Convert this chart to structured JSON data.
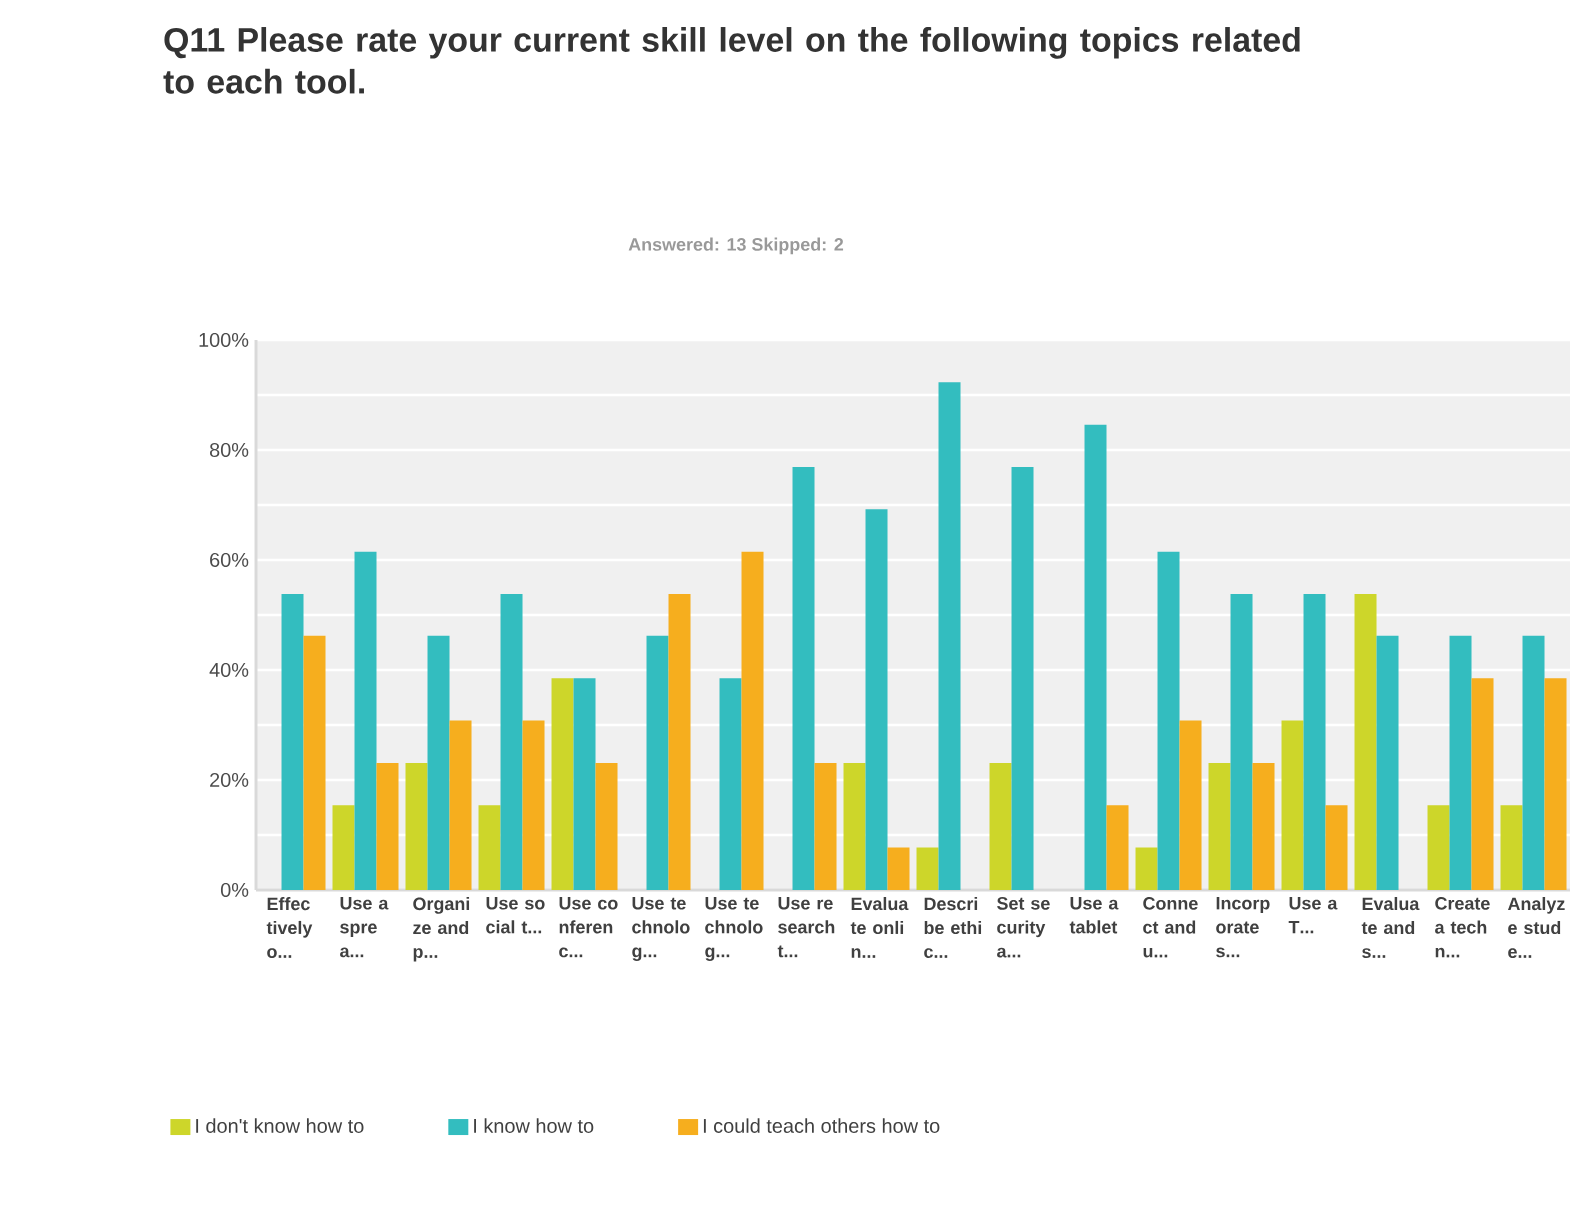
{
  "chart_data": {
    "type": "bar",
    "title": "Q11 Please rate your current skill level on the following topics related to each tool.",
    "subtitle": "Answered: 13    Skipped: 2",
    "categories": [
      "Effectively o...",
      "Use a spre a...",
      "Organize and p...",
      "Use social t...",
      "Use conferen c...",
      "Use technolog...",
      "Use technolog...",
      "Use research t...",
      "Evaluate onlin...",
      "Describe ethic...",
      "Set security a...",
      "Use a tablet",
      "Connect and u...",
      "Incorporate s...",
      "Use a T...",
      "Evaluate and s...",
      "Create a techn...",
      "Analyze stud e..."
    ],
    "series": [
      {
        "name": "I don't know how to",
        "color": "#cdd62a",
        "values": [
          0,
          15.4,
          23.1,
          15.4,
          38.5,
          0,
          0,
          0,
          23.1,
          7.7,
          23.1,
          0,
          7.7,
          23.1,
          30.8,
          53.8,
          15.4,
          15.4
        ]
      },
      {
        "name": "I know how to",
        "color": "#33bdbf",
        "values": [
          53.8,
          61.5,
          46.2,
          53.8,
          38.5,
          46.2,
          38.5,
          76.9,
          69.2,
          92.3,
          76.9,
          84.6,
          61.5,
          53.8,
          53.8,
          46.2,
          46.2,
          46.2
        ]
      },
      {
        "name": "I could teach others how to",
        "color": "#f6ae1e",
        "values": [
          46.2,
          23.1,
          30.8,
          30.8,
          23.1,
          53.8,
          61.5,
          23.1,
          7.7,
          0,
          0,
          15.4,
          30.8,
          23.1,
          15.4,
          0,
          38.5,
          38.5
        ]
      }
    ],
    "ylim": [
      0,
      100
    ],
    "yticks": [
      {
        "value": 0,
        "label": "0%"
      },
      {
        "value": 10,
        "label": null
      },
      {
        "value": 20,
        "label": "20%"
      },
      {
        "value": 30,
        "label": null
      },
      {
        "value": 40,
        "label": "40%"
      },
      {
        "value": 50,
        "label": null
      },
      {
        "value": 60,
        "label": "60%"
      },
      {
        "value": 70,
        "label": null
      },
      {
        "value": 80,
        "label": "80%"
      },
      {
        "value": 90,
        "label": null
      },
      {
        "value": 100,
        "label": "100%"
      }
    ],
    "grid": "y",
    "legend": "bottom"
  }
}
